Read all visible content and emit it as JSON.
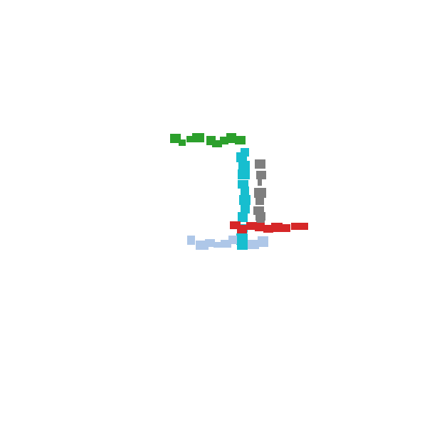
{
  "colors": {
    "background": "#ffffff",
    "green": "#2ca02c",
    "cyan": "#17becf",
    "gray": "#7f7f7f",
    "red": "#d62728",
    "light-blue": "#aec7e8"
  },
  "stroke_sets": [
    {
      "color_key": "green"
    },
    {
      "color_key": "cyan"
    },
    {
      "color_key": "gray"
    },
    {
      "color_key": "red"
    },
    {
      "color_key": "light-blue"
    }
  ]
}
